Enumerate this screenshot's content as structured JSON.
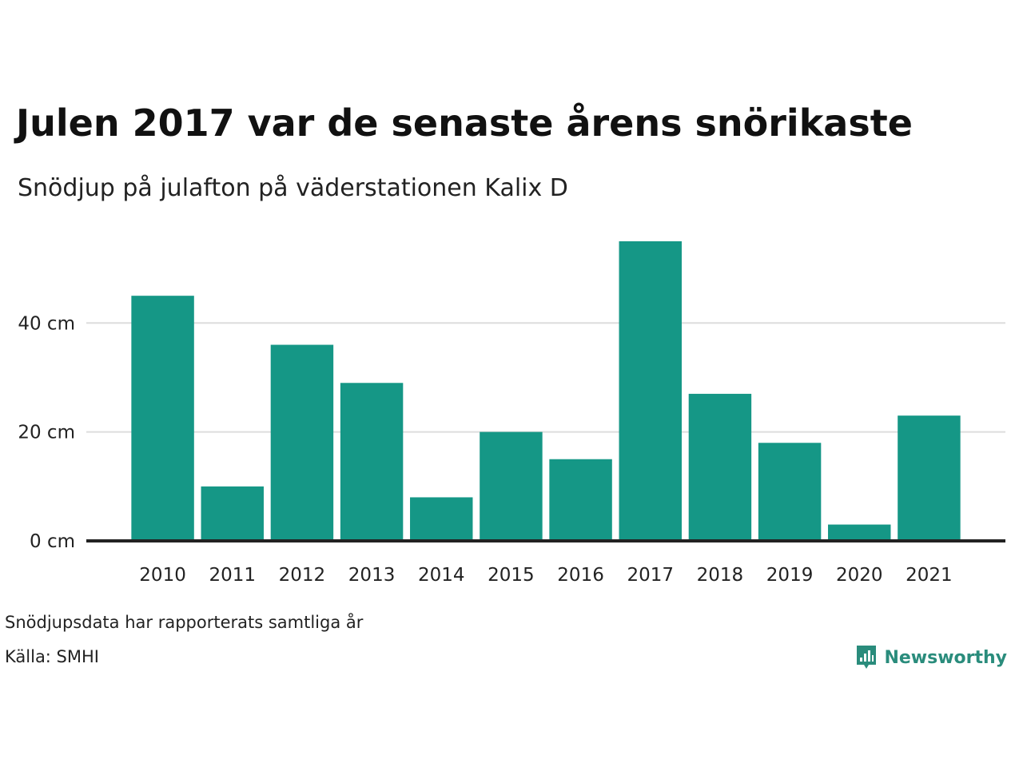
{
  "header": {
    "title": "Julen 2017 var de senaste årens snörikaste",
    "subtitle": "Snödjup på julafton på väderstationen Kalix D"
  },
  "footer": {
    "note": "Snödjupsdata har rapporterats samtliga år",
    "source": "Källa: SMHI",
    "logo_text": "Newsworthy",
    "logo_icon": "bar-chart-speech-bubble-icon"
  },
  "colors": {
    "bar": "#159786",
    "grid": "#dddddd",
    "baseline": "#222222",
    "text": "#222222",
    "brand": "#2a8c7c"
  },
  "chart_data": {
    "type": "bar",
    "categories": [
      "2010",
      "2011",
      "2012",
      "2013",
      "2014",
      "2015",
      "2016",
      "2017",
      "2018",
      "2019",
      "2020",
      "2021"
    ],
    "values": [
      45,
      10,
      36,
      29,
      8,
      20,
      15,
      55,
      27,
      18,
      3,
      23
    ],
    "unit": "cm",
    "ylim": [
      0,
      55
    ],
    "yticks": [
      0,
      20,
      40
    ],
    "ytick_labels": [
      "0 cm",
      "20 cm",
      "40 cm"
    ],
    "grid": true,
    "legend": "none",
    "xlabel": "",
    "ylabel": ""
  }
}
